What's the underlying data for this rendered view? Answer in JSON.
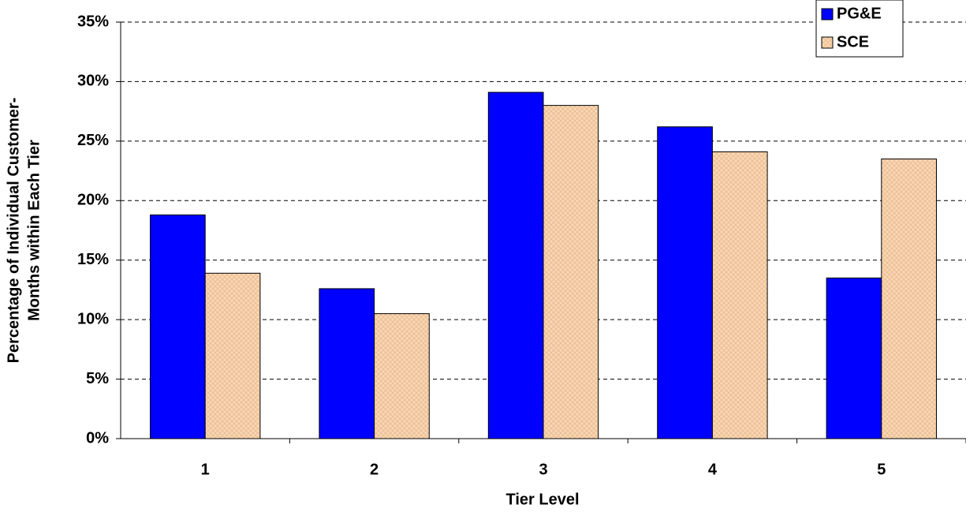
{
  "chart_data": {
    "type": "bar",
    "x_label": "Tier Level",
    "y_label": [
      "Percentage of Individual Customer-",
      "Months within Each Tier"
    ],
    "categories": [
      "1",
      "2",
      "3",
      "4",
      "5"
    ],
    "series": [
      {
        "name": "PG&E",
        "color": "#0000ff",
        "values": [
          18.8,
          12.6,
          29.1,
          26.2,
          13.5
        ]
      },
      {
        "name": "SCE",
        "color": "#fad7b5",
        "values": [
          13.9,
          10.5,
          28.0,
          24.1,
          23.5
        ]
      }
    ],
    "ylim": [
      0,
      35
    ],
    "yticks": [
      {
        "value": 0,
        "label": "0%"
      },
      {
        "value": 5,
        "label": "5%"
      },
      {
        "value": 10,
        "label": "10%"
      },
      {
        "value": 15,
        "label": "15%"
      },
      {
        "value": 20,
        "label": "20%"
      },
      {
        "value": 25,
        "label": "25%"
      },
      {
        "value": 30,
        "label": "30%"
      },
      {
        "value": 35,
        "label": "35%"
      }
    ],
    "grid": true,
    "legend": "top-right"
  }
}
